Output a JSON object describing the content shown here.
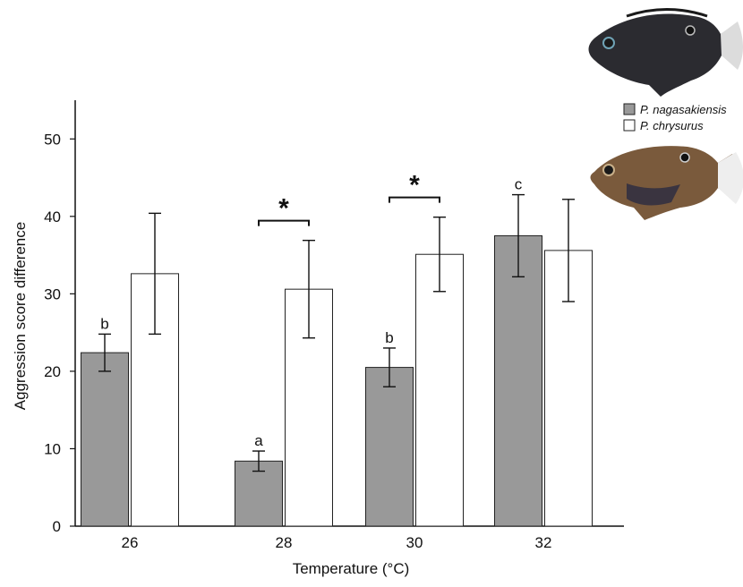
{
  "chart_data": {
    "type": "bar",
    "xlabel": "Temperature (°C)",
    "ylabel": "Aggression score difference",
    "ylim": [
      0,
      55
    ],
    "yticks": [
      0,
      10,
      20,
      30,
      40,
      50
    ],
    "categories": [
      "26",
      "28",
      "30",
      "32"
    ],
    "grid": false,
    "legend_position": "top-right",
    "series": [
      {
        "name": "P. nagasakiensis",
        "color": "#999999",
        "values": [
          22.4,
          8.4,
          20.5,
          37.5
        ],
        "error": [
          2.4,
          1.3,
          2.5,
          5.3
        ]
      },
      {
        "name": "P. chrysurus",
        "color": "#ffffff",
        "values": [
          32.6,
          30.6,
          35.1,
          35.6
        ],
        "error": [
          7.8,
          6.3,
          4.8,
          6.6
        ]
      }
    ],
    "annotations": [
      {
        "category": "26",
        "series": 0,
        "text": "b"
      },
      {
        "category": "28",
        "series": 0,
        "text": "a"
      },
      {
        "category": "30",
        "series": 0,
        "text": "b"
      },
      {
        "category": "32",
        "series": 0,
        "text": "c"
      }
    ],
    "significance": [
      {
        "category": "28",
        "text": "*"
      },
      {
        "category": "30",
        "text": "*"
      }
    ]
  },
  "images": [
    {
      "name": "dark-fish-photo",
      "description_icon": "fish-icon"
    },
    {
      "name": "brown-fish-photo",
      "description_icon": "fish-icon"
    }
  ]
}
